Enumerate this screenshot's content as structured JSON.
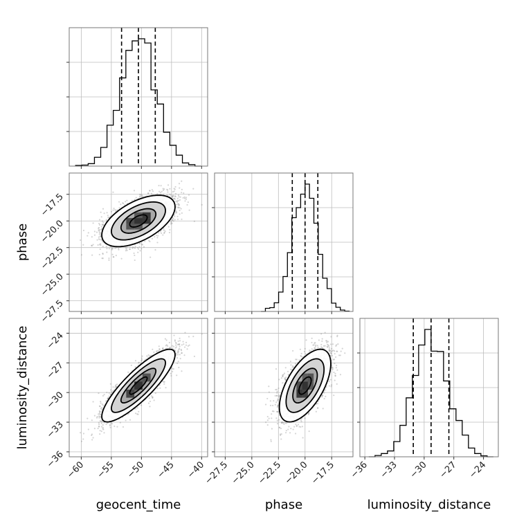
{
  "chart_data": {
    "type": "corner",
    "parameters": [
      {
        "name": "geocent_time",
        "range": [
          -62,
          -39
        ],
        "ticks": [
          -60,
          -55,
          -50,
          -45,
          -40
        ],
        "tick_labels": [
          "−60",
          "−55",
          "−50",
          "−45",
          "−40"
        ],
        "mean": -50.5,
        "sd": 2.9,
        "quantiles": [
          -53.3,
          -50.5,
          -47.7
        ]
      },
      {
        "name": "phase",
        "range": [
          -28.5,
          -15.5
        ],
        "ticks": [
          -27.5,
          -25.0,
          -22.5,
          -20.0,
          -17.5
        ],
        "tick_labels": [
          "−27.5",
          "−25.0",
          "−22.5",
          "−20.0",
          "−17.5"
        ],
        "mean": -20.0,
        "sd": 1.15,
        "quantiles": [
          -21.2,
          -20.0,
          -18.8
        ]
      },
      {
        "name": "luminosity_distance",
        "range": [
          -36.5,
          -22.5
        ],
        "ticks": [
          -36,
          -33,
          -30,
          -27,
          -24
        ],
        "tick_labels": [
          "−36",
          "−33",
          "−30",
          "−27",
          "−24"
        ],
        "mean": -29.3,
        "sd": 1.75,
        "quantiles": [
          -31.1,
          -29.3,
          -27.5
        ]
      }
    ],
    "correlations": [
      [
        1,
        0.55,
        0.85
      ],
      [
        0.55,
        1,
        0.6
      ],
      [
        0.85,
        0.6,
        1
      ]
    ],
    "grid": true,
    "histogram_bins": 20
  }
}
